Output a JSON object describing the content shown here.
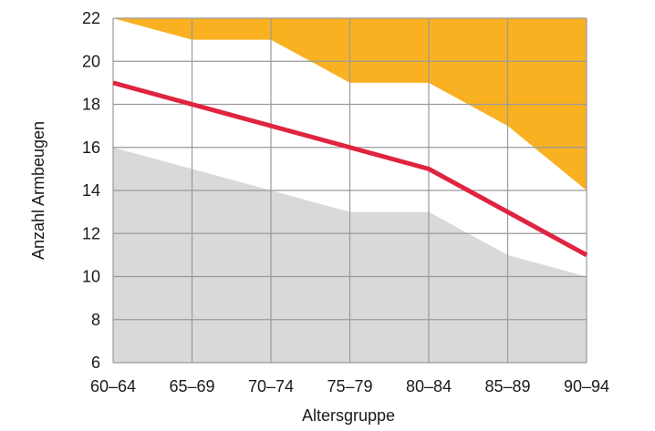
{
  "chart_data": {
    "type": "area",
    "categories": [
      "60–64",
      "65–69",
      "70–74",
      "75–79",
      "80–84",
      "85–89",
      "90–94"
    ],
    "xlabel": "Altersgruppe",
    "ylabel": "Anzahl Armbeugen",
    "ylim": [
      6,
      22
    ],
    "yticks": [
      6,
      8,
      10,
      12,
      14,
      16,
      18,
      20,
      22
    ],
    "grid": true,
    "series": [
      {
        "role": "lower-band",
        "color": "#d9d9d9",
        "values": [
          16,
          15,
          14,
          13,
          13,
          11,
          10
        ]
      },
      {
        "role": "upper-band",
        "color": "#f9b122",
        "values": [
          22,
          21,
          21,
          19,
          19,
          17,
          14
        ]
      },
      {
        "role": "median-line",
        "color": "#e0243f",
        "values": [
          19,
          18,
          17,
          16,
          15,
          13,
          11
        ]
      }
    ]
  }
}
